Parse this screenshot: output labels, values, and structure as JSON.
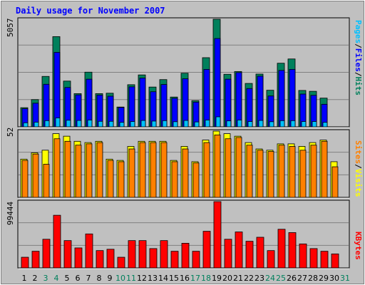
{
  "title": "Daily usage for November 2007",
  "colors": {
    "background": "#C0C0C0",
    "title": "#0000FF",
    "frame_light": "#FFFFFF",
    "frame_dark": "#808080",
    "gridline": "#808080",
    "weekday": "#000000",
    "weekend": "#00805C",
    "hits": "#00805C",
    "files": "#0000FF",
    "pages": "#00C0FF",
    "visits": "#FFFF00",
    "sites": "#FF8000",
    "kbytes": "#FF0000"
  },
  "chart_data": [
    {
      "type": "bar",
      "panel": "hits-files-pages",
      "y_label_max": "5057",
      "ylim": [
        0,
        5057
      ],
      "legend": [
        "Pages",
        "/",
        "Files",
        "/",
        "Hits"
      ],
      "categories": [
        "1",
        "2",
        "3",
        "4",
        "5",
        "6",
        "7",
        "8",
        "9",
        "10",
        "11",
        "12",
        "13",
        "14",
        "15",
        "16",
        "17",
        "18",
        "19",
        "20",
        "21",
        "22",
        "23",
        "24",
        "25",
        "26",
        "27",
        "28",
        "29",
        "30",
        "31"
      ],
      "weekend_days": [
        "3",
        "4",
        "10",
        "11",
        "17",
        "18",
        "24",
        "25",
        "31"
      ],
      "series": [
        {
          "name": "Hits",
          "values": [
            900,
            1280,
            2370,
            4240,
            2150,
            1560,
            2570,
            1560,
            1580,
            930,
            1980,
            2440,
            1870,
            2220,
            1400,
            2520,
            1230,
            3250,
            5057,
            2470,
            2600,
            2040,
            2480,
            1720,
            2990,
            3190,
            1710,
            1670,
            1350,
            0,
            0
          ]
        },
        {
          "name": "Files",
          "values": [
            850,
            1110,
            2000,
            3500,
            1850,
            1500,
            2240,
            1490,
            1440,
            910,
            1880,
            2290,
            1650,
            1990,
            1340,
            2260,
            1160,
            2700,
            4150,
            2240,
            2550,
            1800,
            2380,
            1450,
            2650,
            2700,
            1540,
            1480,
            1060,
            0,
            0
          ]
        },
        {
          "name": "Pages",
          "values": [
            190,
            220,
            290,
            420,
            310,
            300,
            320,
            260,
            260,
            210,
            250,
            300,
            270,
            290,
            240,
            300,
            230,
            320,
            470,
            280,
            320,
            250,
            300,
            240,
            290,
            290,
            250,
            250,
            210,
            0,
            0
          ]
        }
      ]
    },
    {
      "type": "bar",
      "panel": "sites-visits",
      "y_label_max": "52",
      "ylim": [
        0,
        52
      ],
      "legend": [
        "Sites",
        "/",
        "Visits"
      ],
      "categories": [
        "1",
        "2",
        "3",
        "4",
        "5",
        "6",
        "7",
        "8",
        "9",
        "10",
        "11",
        "12",
        "13",
        "14",
        "15",
        "16",
        "17",
        "18",
        "19",
        "20",
        "21",
        "22",
        "23",
        "24",
        "25",
        "26",
        "27",
        "28",
        "29",
        "30",
        "31"
      ],
      "series": [
        {
          "name": "Visits",
          "values": [
            30,
            35,
            37,
            50,
            48,
            44,
            43,
            44,
            30,
            29,
            40,
            44,
            44,
            44,
            29,
            40,
            28,
            45,
            52,
            50,
            48,
            43,
            38,
            37,
            42,
            42,
            40,
            43,
            45,
            28,
            0
          ]
        },
        {
          "name": "Sites",
          "values": [
            29,
            34,
            26,
            46,
            44,
            41,
            42,
            43,
            29,
            28,
            38,
            43,
            43,
            43,
            28,
            38,
            27,
            43,
            49,
            46,
            47,
            41,
            37,
            36,
            41,
            40,
            37,
            41,
            44,
            24,
            0
          ]
        }
      ]
    },
    {
      "type": "bar",
      "panel": "kbytes",
      "y_label_max": "99444",
      "ylim": [
        0,
        99444
      ],
      "legend": [
        "KBytes"
      ],
      "categories": [
        "1",
        "2",
        "3",
        "4",
        "5",
        "6",
        "7",
        "8",
        "9",
        "10",
        "11",
        "12",
        "13",
        "14",
        "15",
        "16",
        "17",
        "18",
        "19",
        "20",
        "21",
        "22",
        "23",
        "24",
        "25",
        "26",
        "27",
        "28",
        "29",
        "30",
        "31"
      ],
      "series": [
        {
          "name": "KBytes",
          "values": [
            16000,
            25000,
            43000,
            79000,
            41000,
            30000,
            51000,
            26000,
            28000,
            16000,
            41000,
            41000,
            29000,
            41000,
            25000,
            37000,
            25000,
            55000,
            99444,
            43000,
            54000,
            40000,
            46000,
            26000,
            58000,
            53000,
            36000,
            29000,
            25000,
            21000,
            0
          ]
        }
      ]
    }
  ]
}
